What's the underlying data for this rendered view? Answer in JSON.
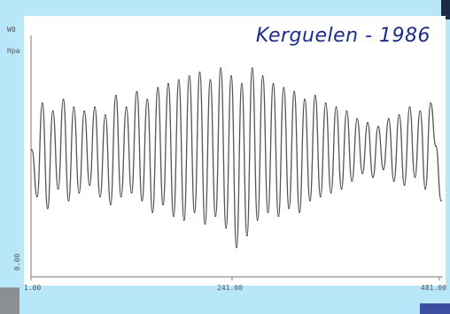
{
  "chart_data": {
    "type": "line",
    "title": "Kerguelen - 1986",
    "y_axis_top_label": "W0",
    "y_axis_unit_label": "Hpa",
    "y_axis_bottom_label": "0.00",
    "x_tick_labels": [
      "1.00",
      "241.00",
      "481.00"
    ],
    "x_range": [
      1,
      481
    ],
    "xlabel": "",
    "ylabel": "",
    "grid": false,
    "series": [
      {
        "values": [
          0.05,
          -0.55,
          0.65,
          -0.7,
          0.55,
          -0.45,
          0.7,
          -0.6,
          0.6,
          -0.5,
          0.55,
          -0.4,
          0.6,
          -0.55,
          0.5,
          -0.65,
          0.75,
          -0.55,
          0.6,
          -0.5,
          0.8,
          -0.6,
          0.7,
          -0.75,
          0.85,
          -0.65,
          0.9,
          -0.8,
          0.95,
          -0.85,
          1.0,
          -0.75,
          1.05,
          -0.9,
          0.95,
          -0.8,
          1.1,
          -0.95,
          1.0,
          -1.2,
          0.9,
          -1.05,
          1.1,
          -0.85,
          1.0,
          -0.75,
          0.9,
          -0.8,
          0.85,
          -0.7,
          0.8,
          -0.75,
          0.7,
          -0.6,
          0.75,
          -0.55,
          0.65,
          -0.5,
          0.6,
          -0.45,
          0.55,
          -0.35,
          0.45,
          -0.25,
          0.4,
          -0.3,
          0.35,
          -0.2,
          0.45,
          -0.35,
          0.5,
          -0.4,
          0.6,
          -0.3,
          0.55,
          -0.45,
          0.65,
          0.1,
          -0.6
        ],
        "color": "#555555"
      }
    ]
  },
  "colors": {
    "background": "#b7e7f8",
    "plot_background": "#ffffff",
    "line": "#555555",
    "title": "#1a2b8c"
  }
}
